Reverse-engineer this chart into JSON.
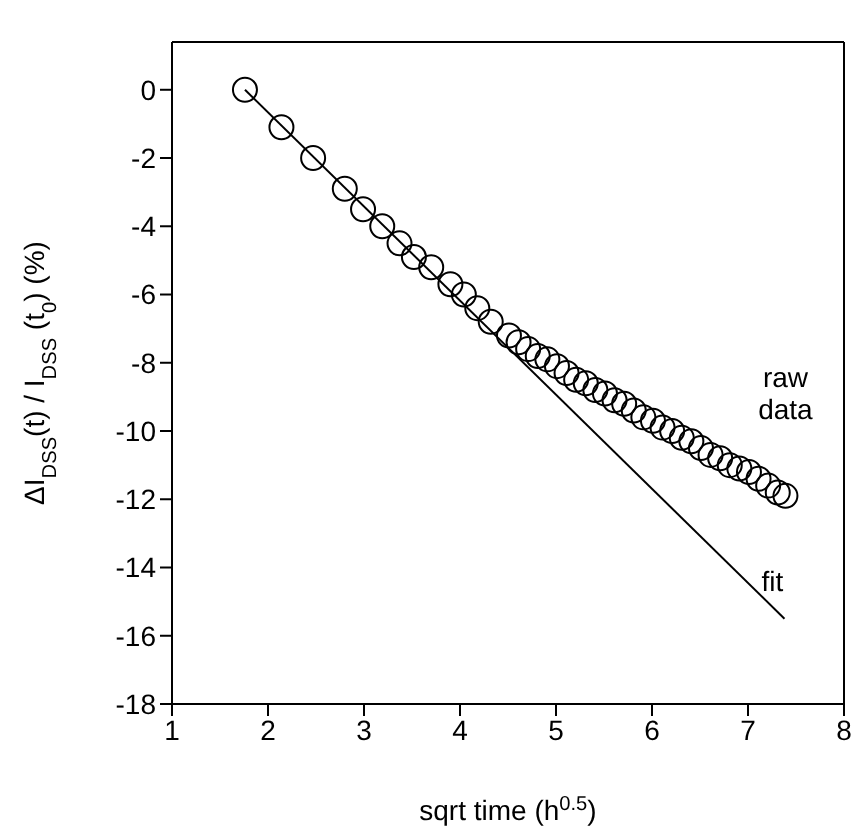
{
  "chart_data": {
    "type": "scatter",
    "xlabel": "sqrt time (h$^{0.5}$)",
    "ylabel": "ΔI$_{DSS}$(t) / I$_{DSS}$ (t$_{0}$) (%)",
    "xlim": [
      1,
      8
    ],
    "xticks": [
      1,
      2,
      3,
      4,
      5,
      6,
      7,
      8
    ],
    "ylim": [
      -18,
      1.4
    ],
    "yticks": [
      -18,
      -16,
      -14,
      -12,
      -10,
      -8,
      -6,
      -4,
      -2,
      0
    ],
    "marker": "circle",
    "series": [
      {
        "name": "raw data",
        "color": "#000000",
        "x": [
          1.76,
          2.14,
          2.47,
          2.8,
          2.99,
          3.19,
          3.37,
          3.52,
          3.7,
          3.9,
          4.04,
          4.18,
          4.32,
          4.51,
          4.61,
          4.71,
          4.81,
          4.91,
          5.01,
          5.11,
          5.21,
          5.31,
          5.41,
          5.51,
          5.61,
          5.71,
          5.81,
          5.91,
          6.01,
          6.11,
          6.21,
          6.31,
          6.41,
          6.51,
          6.61,
          6.71,
          6.81,
          6.91,
          7.01,
          7.11,
          7.21,
          7.31,
          7.39
        ],
        "values": [
          0,
          -1.1,
          -2.0,
          -2.9,
          -3.5,
          -4.0,
          -4.5,
          -4.9,
          -5.2,
          -5.7,
          -6.0,
          -6.4,
          -6.8,
          -7.2,
          -7.4,
          -7.6,
          -7.8,
          -7.9,
          -8.1,
          -8.3,
          -8.5,
          -8.6,
          -8.8,
          -8.9,
          -9.1,
          -9.2,
          -9.4,
          -9.6,
          -9.7,
          -9.9,
          -10.0,
          -10.2,
          -10.3,
          -10.5,
          -10.7,
          -10.8,
          -11.0,
          -11.1,
          -11.2,
          -11.4,
          -11.6,
          -11.8,
          -11.9
        ]
      },
      {
        "name": "fit",
        "type": "line",
        "color": "#000000",
        "marker": "none",
        "x": [
          1.76,
          7.38
        ],
        "values": [
          0,
          -15.5
        ]
      }
    ]
  }
}
